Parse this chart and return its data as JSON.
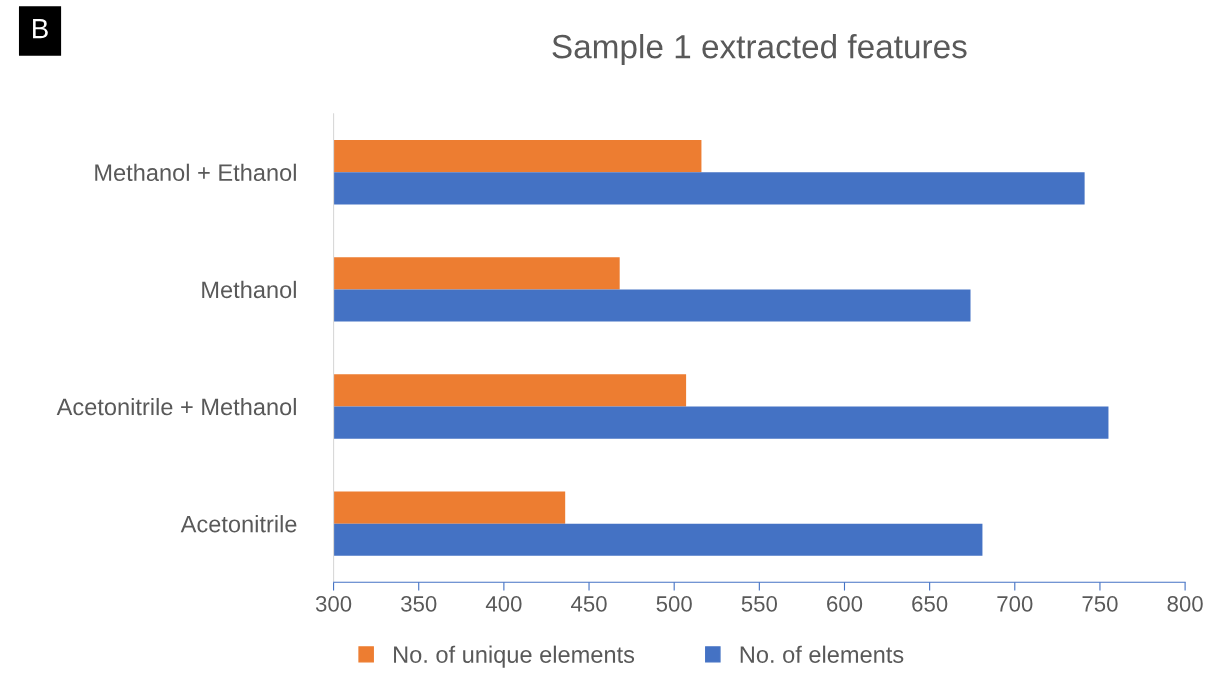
{
  "chart_data": {
    "type": "bar",
    "orientation": "horizontal",
    "title": "Sample 1 extracted features",
    "annotations": [
      "B"
    ],
    "categories": [
      "Methanol + Ethanol",
      "Methanol",
      "Acetonitrile + Methanol",
      "Acetonitrile"
    ],
    "series": [
      {
        "name": "No. of unique elements",
        "color": "#ed7d31",
        "values": [
          516,
          468,
          507,
          436
        ]
      },
      {
        "name": "No. of elements",
        "color": "#4472c4",
        "values": [
          741,
          674,
          755,
          681
        ]
      }
    ],
    "xlim": [
      300,
      800
    ],
    "xticks": [
      300,
      350,
      400,
      450,
      500,
      550,
      600,
      650,
      700,
      750,
      800
    ],
    "grid": false,
    "legend": "bottom"
  }
}
